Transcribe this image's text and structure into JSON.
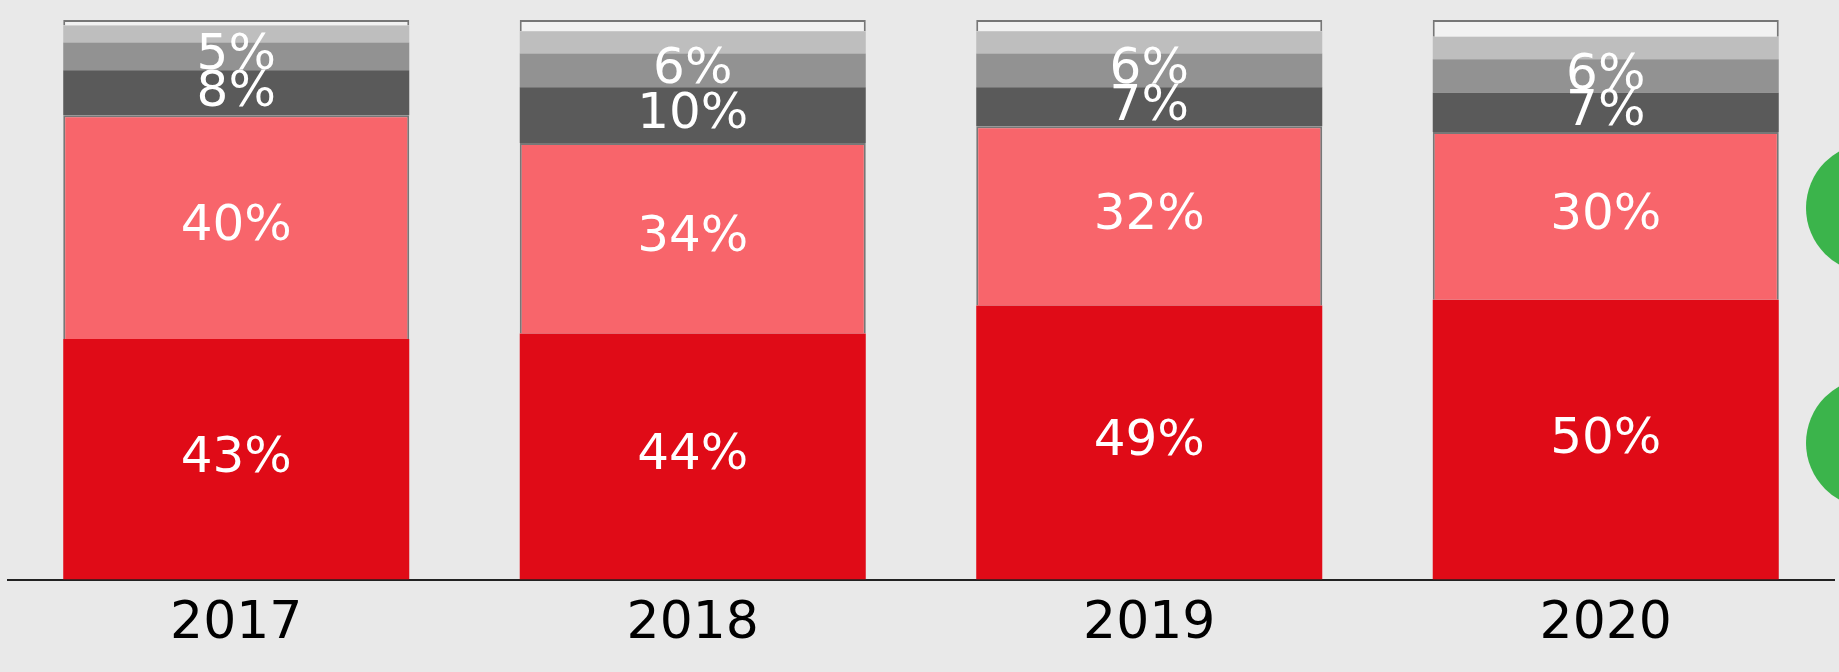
{
  "chart_data": {
    "type": "bar",
    "stacked": true,
    "categories": [
      "2017",
      "2018",
      "2019",
      "2020"
    ],
    "series": [
      {
        "color": "#e00b17",
        "values": [
          43,
          44,
          49,
          50
        ],
        "value_labels": [
          "43%",
          "44%",
          "49%",
          "50%"
        ]
      },
      {
        "color": "#f8656b",
        "values": [
          40,
          34,
          32,
          30
        ],
        "value_labels": [
          "40%",
          "34%",
          "32%",
          "30%"
        ]
      },
      {
        "color": "#5a5a5a",
        "values": [
          8,
          10,
          7,
          7
        ],
        "value_labels": [
          "8%",
          "10%",
          "7%",
          "7%"
        ]
      },
      {
        "color": "#929292",
        "values": [
          5,
          6,
          6,
          6
        ],
        "value_labels": [
          "5%",
          "6%",
          "6%",
          "6%"
        ]
      },
      {
        "color": "#bebebe",
        "values": [
          3,
          4,
          4,
          4
        ]
      },
      {
        "color": "#f2f2f2",
        "values": [
          1,
          2,
          2,
          3
        ]
      }
    ],
    "grid": false,
    "legend": false
  }
}
